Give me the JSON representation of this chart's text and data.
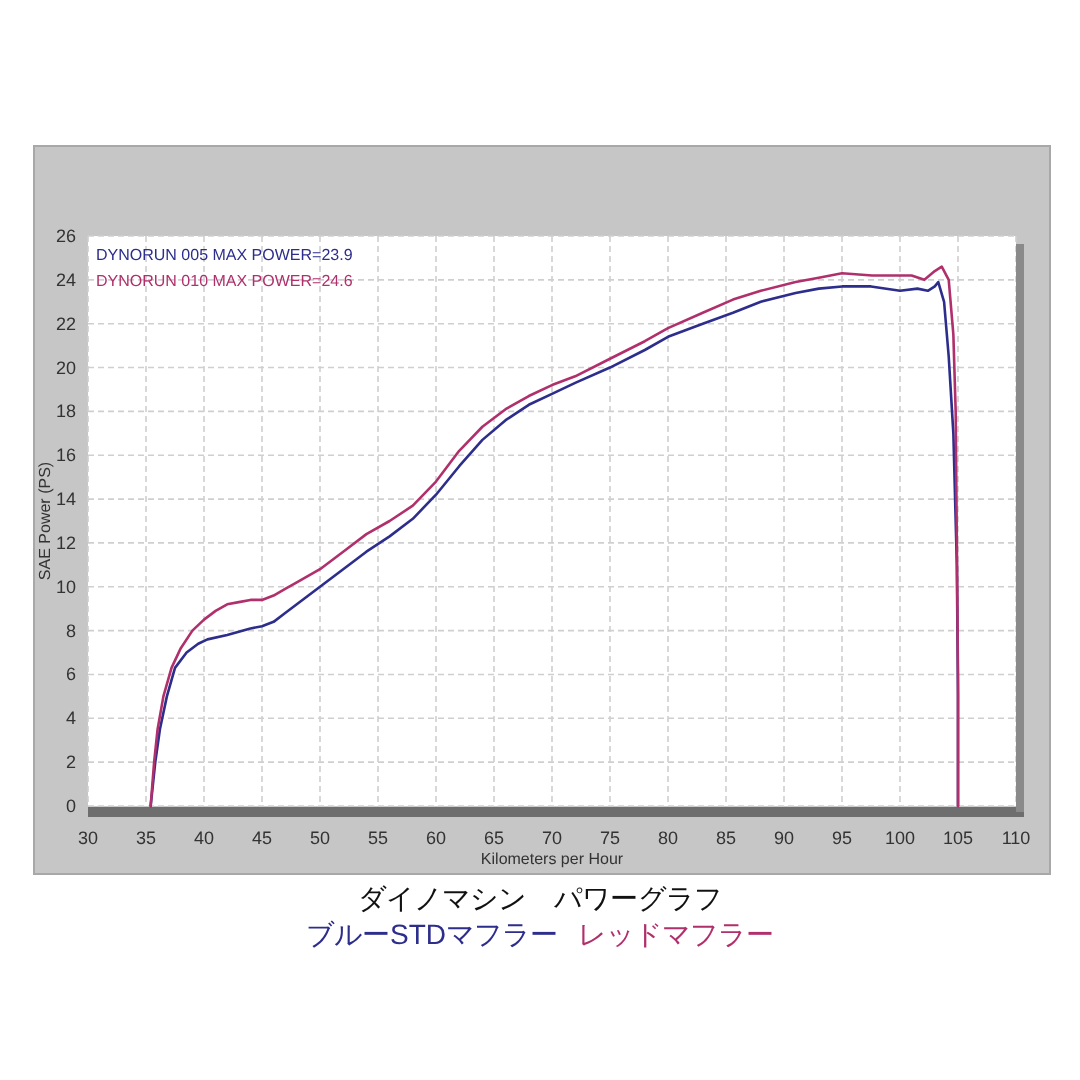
{
  "chart_data": {
    "type": "line",
    "xlabel": "Kilometers per Hour",
    "ylabel": "SAE Power (PS)",
    "series": [
      {
        "name": "DYNORUN 005  MAX POWER=23.9",
        "color": "#2d2d8c",
        "x": [
          35.4,
          35.8,
          36.2,
          36.8,
          37.5,
          38.5,
          39.5,
          40.3,
          42,
          44,
          45,
          46,
          47,
          48,
          50,
          52,
          54,
          56,
          58,
          60,
          62,
          64,
          66,
          68,
          70,
          72,
          75,
          78,
          80,
          83,
          85.6,
          88,
          91,
          93,
          95,
          97.5,
          100,
          101.5,
          102.4,
          103,
          103.3,
          103.8,
          104.2,
          104.6,
          104.9,
          105,
          105
        ],
        "values": [
          0,
          2,
          3.5,
          5,
          6.3,
          7,
          7.4,
          7.6,
          7.8,
          8.1,
          8.2,
          8.4,
          8.8,
          9.2,
          10,
          10.8,
          11.6,
          12.3,
          13.1,
          14.2,
          15.5,
          16.7,
          17.6,
          18.3,
          18.8,
          19.3,
          20,
          20.8,
          21.4,
          22,
          22.5,
          23,
          23.4,
          23.6,
          23.7,
          23.7,
          23.5,
          23.6,
          23.5,
          23.7,
          23.9,
          23,
          20.5,
          17,
          11,
          5,
          0
        ]
      },
      {
        "name": "DYNORUN 010  MAX POWER=24.6",
        "color": "#b0306c",
        "x": [
          35.4,
          35.7,
          36,
          36.5,
          37.2,
          38,
          39,
          40,
          41,
          42,
          43,
          44,
          45,
          46,
          47,
          48,
          50,
          52,
          54,
          56,
          58,
          60,
          62,
          64,
          66,
          68,
          70,
          72,
          75,
          78,
          80,
          83,
          85.6,
          88,
          91,
          93,
          95,
          97.6,
          100,
          101,
          102.1,
          103,
          103.6,
          104.2,
          104.6,
          104.8,
          104.9,
          105,
          105
        ],
        "values": [
          0,
          2,
          3.5,
          5,
          6.3,
          7.2,
          8,
          8.5,
          8.9,
          9.2,
          9.3,
          9.4,
          9.4,
          9.6,
          9.9,
          10.2,
          10.8,
          11.6,
          12.4,
          13,
          13.7,
          14.8,
          16.2,
          17.3,
          18.1,
          18.7,
          19.2,
          19.6,
          20.4,
          21.2,
          21.8,
          22.5,
          23.1,
          23.5,
          23.9,
          24.1,
          24.3,
          24.2,
          24.2,
          24.2,
          24,
          24.4,
          24.6,
          24,
          21.5,
          18,
          12,
          6,
          0
        ]
      }
    ],
    "xlim": [
      30,
      110
    ],
    "xticks": [
      30,
      35,
      40,
      45,
      50,
      55,
      60,
      65,
      70,
      75,
      80,
      85,
      90,
      95,
      100,
      105,
      110
    ],
    "ylim": [
      0,
      26
    ],
    "yticks": [
      0,
      2,
      4,
      6,
      8,
      10,
      12,
      14,
      16,
      18,
      20,
      22,
      24,
      26
    ],
    "grid": true,
    "legend": "top left",
    "annotations": [
      "ダイノマシン　パワーグラフ",
      "ブルーSTDマフラー",
      "レッドマフラー"
    ]
  }
}
